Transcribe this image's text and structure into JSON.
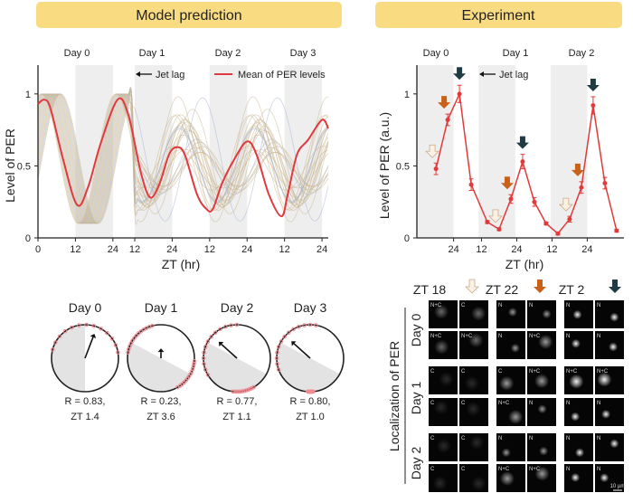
{
  "colors": {
    "banner": "#f9dc82",
    "mean_line": "#e0393e",
    "trace": "#c9b48f",
    "trace_alt": "#9fb3d6",
    "night_band": "#eeeeee",
    "experiment_line": "#e23a3a",
    "arrow_zt18": "#fbf1e3",
    "arrow_zt22": "#c8621a",
    "arrow_zt2": "#1f3c44",
    "phase_dot": "#f08a92"
  },
  "banners": {
    "left": "Model prediction",
    "right": "Experiment"
  },
  "chart_data": [
    {
      "type": "line",
      "title": "",
      "ylabel": "Level of PER",
      "xlabel": "ZT (hr)",
      "ylim": [
        0,
        1.2
      ],
      "xlim": [
        0,
        93
      ],
      "yticks": [
        0,
        0.5,
        1
      ],
      "ytick_labels": [
        "0",
        "0.5",
        "1"
      ],
      "xticks": [
        0,
        12,
        24,
        31,
        43,
        55,
        67,
        79,
        91
      ],
      "xtick_labels": [
        "0",
        "12",
        "24",
        "12",
        "24",
        "12",
        "24",
        "12",
        "24"
      ],
      "day_labels": [
        {
          "text": "Day 0",
          "x": 12
        },
        {
          "text": "Day 1",
          "x": 37
        },
        {
          "text": "Day 2",
          "x": 61
        },
        {
          "text": "Day 3",
          "x": 85
        }
      ],
      "night_bands": [
        [
          12,
          24
        ],
        [
          31,
          43
        ],
        [
          55,
          67
        ],
        [
          79,
          91
        ]
      ],
      "annotation": "Jet lag",
      "legend": {
        "entries": [
          "Mean of PER levels"
        ],
        "position": "top-right"
      },
      "series": [
        {
          "name": "Mean of PER levels",
          "points": [
            [
              0,
              0.93
            ],
            [
              2,
              0.96
            ],
            [
              4,
              0.9
            ],
            [
              8,
              0.55
            ],
            [
              12.5,
              0.23
            ],
            [
              16,
              0.35
            ],
            [
              20,
              0.65
            ],
            [
              25.5,
              0.96
            ],
            [
              29,
              0.85
            ],
            [
              33,
              0.45
            ],
            [
              36,
              0.28
            ],
            [
              39,
              0.38
            ],
            [
              42,
              0.58
            ],
            [
              44.5,
              0.63
            ],
            [
              47,
              0.58
            ],
            [
              51,
              0.3
            ],
            [
              54,
              0.2
            ],
            [
              56,
              0.2
            ],
            [
              59,
              0.38
            ],
            [
              63,
              0.55
            ],
            [
              67,
              0.67
            ],
            [
              70,
              0.58
            ],
            [
              74,
              0.3
            ],
            [
              78,
              0.15
            ],
            [
              80,
              0.3
            ],
            [
              83,
              0.58
            ],
            [
              86.5,
              0.68
            ],
            [
              91,
              0.82
            ],
            [
              93,
              0.76
            ]
          ]
        }
      ]
    },
    {
      "type": "line",
      "title": "",
      "ylabel": "Level of PER (a.u.)",
      "xlabel": "ZT (hr)",
      "ylim": [
        0,
        1.2
      ],
      "xlim": [
        11.5,
        82
      ],
      "yticks": [
        0,
        0.5,
        1
      ],
      "ytick_labels": [
        "0",
        "0.5",
        "1"
      ],
      "xticks": [
        24,
        33.5,
        45.5,
        57.5,
        69.5
      ],
      "xtick_labels": [
        "24",
        "12",
        "24",
        "12",
        "24"
      ],
      "day_labels": [
        {
          "text": "Day 0",
          "x": 18
        },
        {
          "text": "Day 1",
          "x": 39
        },
        {
          "text": "Day 2",
          "x": 63
        }
      ],
      "night_bands": [
        [
          11.5,
          24
        ],
        [
          32.5,
          45
        ],
        [
          57,
          69.5
        ]
      ],
      "annotation": "Jet lag",
      "series": [
        {
          "x": [
            18,
            22,
            26,
            30,
            35.5,
            39.5,
            43.5,
            47.5,
            51.5,
            55.5,
            59.5,
            63.5,
            67.5,
            71.5,
            75.5,
            79.5
          ],
          "zt": [
            18,
            22,
            2,
            6,
            14,
            18,
            22,
            2,
            6,
            10,
            14,
            18,
            22,
            2,
            6,
            10
          ],
          "values": [
            0.48,
            0.82,
            1.0,
            0.37,
            0.11,
            0.06,
            0.27,
            0.53,
            0.25,
            0.1,
            0.03,
            0.13,
            0.35,
            0.92,
            0.38,
            0.05
          ],
          "errors": [
            0.04,
            0.04,
            0.06,
            0.04,
            0.01,
            0.01,
            0.03,
            0.05,
            0.03,
            0.01,
            0.01,
            0.02,
            0.04,
            0.06,
            0.04,
            0.01
          ]
        }
      ],
      "markers": [
        {
          "index": 0,
          "type": "zt18"
        },
        {
          "index": 1,
          "type": "zt22"
        },
        {
          "index": 2,
          "type": "zt2"
        },
        {
          "index": 5,
          "type": "zt18"
        },
        {
          "index": 6,
          "type": "zt22"
        },
        {
          "index": 7,
          "type": "zt2"
        },
        {
          "index": 11,
          "type": "zt18"
        },
        {
          "index": 12,
          "type": "zt22"
        },
        {
          "index": 13,
          "type": "zt2"
        }
      ]
    }
  ],
  "phase_plots": [
    {
      "day": "Day 0",
      "r_text": "R = 0.83,",
      "zt_text": "ZT 1.4",
      "R": 0.83,
      "ZT": 1.4
    },
    {
      "day": "Day 1",
      "r_text": "R = 0.23,",
      "zt_text": "ZT 3.6",
      "R": 0.23,
      "ZT": 3.6
    },
    {
      "day": "Day 2",
      "r_text": "R = 0.77,",
      "zt_text": "ZT 1.1",
      "R": 0.77,
      "ZT": 1.1
    },
    {
      "day": "Day 3",
      "r_text": "R = 0.80,",
      "zt_text": "ZT 1.0",
      "R": 0.8,
      "ZT": 1.0
    }
  ],
  "microscopy": {
    "ylabel": "Localization of PER",
    "columns": [
      "ZT 18",
      "ZT 22",
      "ZT 2"
    ],
    "row_groups": [
      "Day 0",
      "Day 1",
      "Day 2"
    ],
    "cells": [
      [
        "N+C",
        "C",
        "N",
        "N",
        "N",
        "N"
      ],
      [
        "N+C",
        "N+C",
        "N",
        "N+C",
        "N",
        "N"
      ],
      [
        "C",
        "C",
        "C",
        "N+C",
        "N+C",
        "N+C"
      ],
      [
        "C",
        "C",
        "N+C",
        "N",
        "N",
        "N"
      ],
      [
        "C",
        "C",
        "N",
        "N",
        "N",
        "N"
      ],
      [
        "C",
        "C",
        "N+C",
        "N+C",
        "N",
        "N"
      ]
    ],
    "scale_bar": "10 µm"
  }
}
